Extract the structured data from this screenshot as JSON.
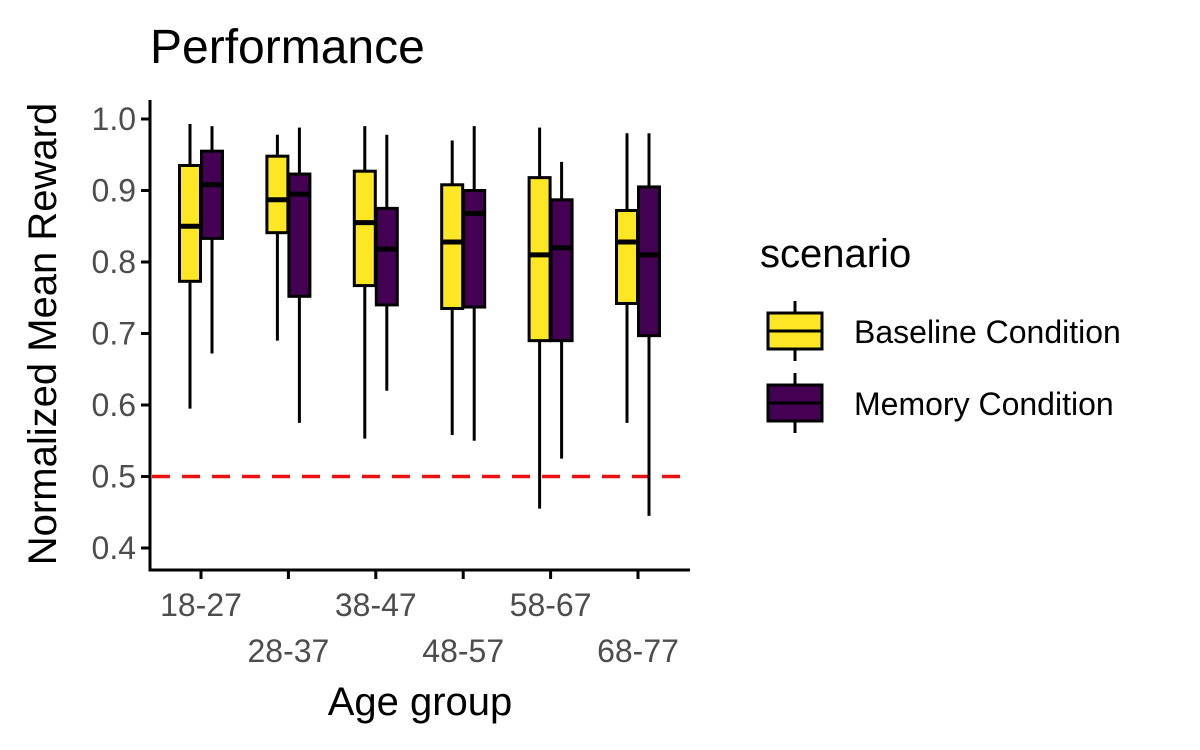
{
  "chart_data": {
    "type": "boxplot",
    "title": "Performance",
    "xlabel": "Age group",
    "ylabel": "Normalized Mean Reward",
    "ylim": [
      0.37,
      1.03
    ],
    "yticks": [
      0.4,
      0.5,
      0.6,
      0.7,
      0.8,
      0.9,
      1.0
    ],
    "ytick_labels": [
      "0.4",
      "0.5",
      "0.6",
      "0.7",
      "0.8",
      "0.9",
      "1.0"
    ],
    "categories": [
      "18-27",
      "28-37",
      "38-47",
      "48-57",
      "58-67",
      "68-77"
    ],
    "reference_line": {
      "y": 0.5,
      "color": "#ee1111",
      "style": "dashed"
    },
    "grid": false,
    "legend": {
      "title": "scenario",
      "position": "right"
    },
    "series": [
      {
        "name": "Baseline Condition",
        "color": "#fde725",
        "boxes": [
          {
            "min": 0.595,
            "q1": 0.773,
            "median": 0.85,
            "q3": 0.935,
            "max": 0.993
          },
          {
            "min": 0.69,
            "q1": 0.841,
            "median": 0.887,
            "q3": 0.948,
            "max": 0.978
          },
          {
            "min": 0.553,
            "q1": 0.767,
            "median": 0.855,
            "q3": 0.927,
            "max": 0.99
          },
          {
            "min": 0.558,
            "q1": 0.735,
            "median": 0.828,
            "q3": 0.908,
            "max": 0.97
          },
          {
            "min": 0.455,
            "q1": 0.69,
            "median": 0.81,
            "q3": 0.918,
            "max": 0.988
          },
          {
            "min": 0.575,
            "q1": 0.742,
            "median": 0.828,
            "q3": 0.872,
            "max": 0.98
          }
        ]
      },
      {
        "name": "Memory Condition",
        "color": "#440154",
        "boxes": [
          {
            "min": 0.672,
            "q1": 0.833,
            "median": 0.908,
            "q3": 0.955,
            "max": 0.99
          },
          {
            "min": 0.575,
            "q1": 0.752,
            "median": 0.895,
            "q3": 0.923,
            "max": 0.988
          },
          {
            "min": 0.62,
            "q1": 0.74,
            "median": 0.818,
            "q3": 0.875,
            "max": 0.978
          },
          {
            "min": 0.55,
            "q1": 0.737,
            "median": 0.868,
            "q3": 0.9,
            "max": 0.99
          },
          {
            "min": 0.525,
            "q1": 0.69,
            "median": 0.82,
            "q3": 0.887,
            "max": 0.94
          },
          {
            "min": 0.445,
            "q1": 0.697,
            "median": 0.81,
            "q3": 0.905,
            "max": 0.98
          }
        ]
      }
    ]
  }
}
